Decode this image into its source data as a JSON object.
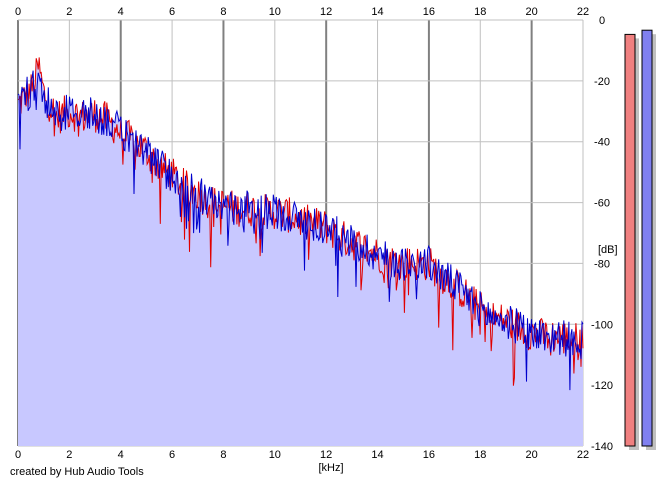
{
  "chart_data": {
    "type": "area",
    "xlabel": "[kHz]",
    "ylabel": "[dB]",
    "xlim": [
      0,
      22
    ],
    "ylim": [
      -140,
      0
    ],
    "x_ticks": [
      0,
      2,
      4,
      6,
      8,
      10,
      12,
      14,
      16,
      18,
      20,
      22
    ],
    "y_ticks": [
      0,
      -20,
      -40,
      -60,
      -80,
      -100,
      -120,
      -140
    ],
    "y_tick_labels": [
      "0",
      "-20",
      "-40",
      "-60",
      "-80",
      "-100",
      "-120",
      "-140"
    ],
    "grid": true,
    "envelope": {
      "x": [
        0,
        0.3,
        0.6,
        0.8,
        1,
        1.5,
        2,
        2.5,
        3,
        3.5,
        4,
        4.5,
        5,
        5.5,
        6,
        6.5,
        7,
        7.5,
        8,
        8.5,
        9,
        9.5,
        10,
        10.5,
        11,
        11.5,
        12,
        12.5,
        13,
        13.5,
        14,
        14.5,
        15,
        15.5,
        16,
        16.5,
        17,
        17.5,
        18,
        18.5,
        19,
        19.5,
        20,
        20.5,
        21,
        21.5,
        22
      ],
      "y": [
        -28,
        -25,
        -22,
        -15,
        -24,
        -32,
        -30,
        -32,
        -31,
        -33,
        -37,
        -40,
        -43,
        -48,
        -51,
        -55,
        -57,
        -60,
        -61,
        -62,
        -62,
        -63,
        -63,
        -64,
        -66,
        -67,
        -68,
        -71,
        -73,
        -75,
        -77,
        -79,
        -80,
        -80,
        -80,
        -84,
        -87,
        -91,
        -95,
        -98,
        -99,
        -101,
        -103,
        -104,
        -104,
        -105,
        -105
      ]
    },
    "series": [
      {
        "name": "",
        "color": "#e00000"
      },
      {
        "name": "",
        "color": "#0000cc"
      }
    ],
    "fill_color": "#c8c8ff",
    "level_meters": [
      {
        "color": "#f08080",
        "level": 0.98
      },
      {
        "color": "#8080f0",
        "level": 0.99
      }
    ]
  },
  "footer": {
    "credit": "created by Hub Audio Tools"
  }
}
